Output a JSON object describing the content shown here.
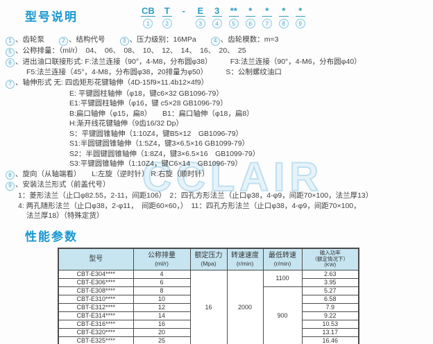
{
  "sections": {
    "model_title": "型号说明",
    "performance_title": "性能参数"
  },
  "watermark": {
    "text": "CCLAIR"
  },
  "model_code": {
    "segments": [
      {
        "code": "CB",
        "num": "1",
        "underline": true
      },
      {
        "code": "T",
        "num": "2",
        "underline": true
      },
      {
        "code": "-",
        "num": "",
        "underline": false
      },
      {
        "code": "E",
        "num": "3",
        "underline": true
      },
      {
        "code": "3",
        "num": "4",
        "underline": true
      },
      {
        "code": "**",
        "num": "5",
        "underline": true
      },
      {
        "code": "*",
        "num": "6",
        "underline": true
      },
      {
        "code": "*",
        "num": "7",
        "underline": true
      },
      {
        "code": "*",
        "num": "8",
        "underline": true
      },
      {
        "code": "*",
        "num": "9",
        "underline": true
      }
    ]
  },
  "notes": [
    {
      "level": 0,
      "parts": [
        {
          "n": "1"
        },
        {
          "t": "、齿轮泵　　"
        },
        {
          "n": "2"
        },
        {
          "t": "、结构代号　　"
        },
        {
          "n": "3"
        },
        {
          "t": "、压力级别：16MPa　　"
        },
        {
          "n": "4"
        },
        {
          "t": "、齿轮模数：m=3"
        }
      ]
    },
    {
      "level": 0,
      "parts": [
        {
          "n": "5"
        },
        {
          "t": "、公称排量：（ml/r）　04、　06、　08、　10、　12、　14、　16、　20、　25"
        }
      ]
    },
    {
      "level": 0,
      "parts": [
        {
          "n": "6"
        },
        {
          "t": "、进出油口联接形式: F:法兰连接（90°，4-M8，分布圆φ38）　　　F3:法兰连接（90°，4-M6，分布圆φ40）"
        }
      ]
    },
    {
      "level": 2,
      "parts": [
        {
          "t": "F5:法兰连接（45°，4-M8，分布圆φ38，20排量为φ50）　　　S：公制螺纹油口"
        }
      ]
    },
    {
      "level": 0,
      "parts": [
        {
          "n": "7"
        },
        {
          "t": "、轴伸形式 无: 四齿矩形花键轴伸（4D-15f9×11.4b12×4f9）"
        }
      ]
    },
    {
      "level": 3,
      "parts": [
        {
          "t": "E: 平键圆柱轴伸（φ18，键c6×32 GB1096-79）"
        }
      ]
    },
    {
      "level": 3,
      "parts": [
        {
          "t": "E1:平键圆柱轴伸（φ16，键 c5×28 GB1096-79）"
        }
      ]
    },
    {
      "level": 3,
      "parts": [
        {
          "t": "B:扁口轴伸（φ15，扁8）　　B1：扁口轴伸（φ18，扁8）"
        }
      ]
    },
    {
      "level": 3,
      "parts": [
        {
          "t": "H:渐开线花键轴伸（9齿16/32 Dp）"
        }
      ]
    },
    {
      "level": 3,
      "parts": [
        {
          "t": "S：平键圆锥轴伸（1:10Z4，键B5×12　GB1096-79）"
        }
      ]
    },
    {
      "level": 3,
      "parts": [
        {
          "t": "S1:半圆键圆锥轴伸（1:5Z4，键3×6.5×16 GB1099-79）"
        }
      ]
    },
    {
      "level": 3,
      "parts": [
        {
          "t": "S2：半圆键圆锥轴伸（1:8Z4，键3×6.5×16　GB1099-79）"
        }
      ]
    },
    {
      "level": 3,
      "parts": [
        {
          "t": "S3:平键圆锥轴伸（1:10Z4，键C6×14　GB1096-79）"
        }
      ]
    },
    {
      "level": 0,
      "parts": [
        {
          "n": "8"
        },
        {
          "t": "、旋向（从轴端看）　　L:左旋（逆时针） R:右旋（顺时针）"
        }
      ]
    },
    {
      "level": 0,
      "parts": [
        {
          "n": "9"
        },
        {
          "t": "、安装法兰形式（前盖代号）"
        }
      ]
    },
    {
      "level": 1,
      "parts": [
        {
          "t": "1：菱形法兰（止口φ82.55，2-11，间距106）　2：四孔方形法兰（止口φ38，4-φ9，间距70×100，法兰厚13）"
        }
      ]
    },
    {
      "level": 1,
      "parts": [
        {
          "t": "4: 两孔随形法兰（止口φ38，2-φ11，　间距60×60，）　11：四孔方形法兰（止口φ38，4-φ9，间距70×100，"
        }
      ]
    },
    {
      "level": 2,
      "parts": [
        {
          "t": "法兰厚18）（特殊定货）"
        }
      ]
    }
  ],
  "table": {
    "headers": [
      {
        "lines": [
          "型号"
        ]
      },
      {
        "lines": [
          "公称排量",
          "(ml/r)"
        ]
      },
      {
        "lines": [
          "额定压力",
          "(Mpa)"
        ]
      },
      {
        "lines": [
          "转速速度",
          "(r/min)"
        ]
      },
      {
        "lines": [
          "最低转速",
          "(r/min)"
        ]
      },
      {
        "lines": [
          "输入功率",
          "（额定情况下）",
          "(KW)"
        ],
        "tiny": true
      }
    ],
    "rated_pressure": "16",
    "speed": "2000",
    "min_speed_groups": [
      {
        "value": "1100",
        "span": 2
      },
      {
        "value": "900",
        "span": 7
      }
    ],
    "rows": [
      {
        "model": "CBT-E304****",
        "displacement": "4",
        "power": "2.63"
      },
      {
        "model": "CBT-E306****",
        "displacement": "6",
        "power": "3.95"
      },
      {
        "model": "CBT-E308****",
        "displacement": "8",
        "power": "5.27"
      },
      {
        "model": "CBT-E310****",
        "displacement": "10",
        "power": "6.58"
      },
      {
        "model": "CBT-E312****",
        "displacement": "12",
        "power": "7.9"
      },
      {
        "model": "CBT-E314****",
        "displacement": "14",
        "power": "9.22"
      },
      {
        "model": "CBT-E316****",
        "displacement": "16",
        "power": "10.53"
      },
      {
        "model": "CBT-E320****",
        "displacement": "20",
        "power": "13.17"
      },
      {
        "model": "CBT-E325****",
        "displacement": "25",
        "power": "16.46"
      }
    ]
  }
}
